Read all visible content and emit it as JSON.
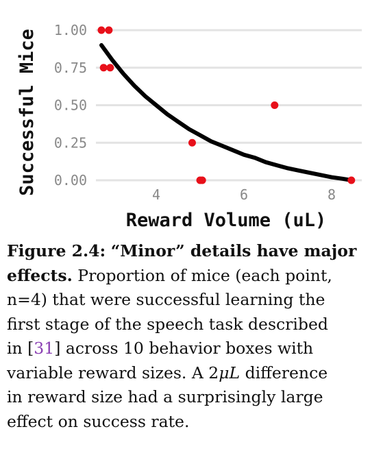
{
  "chart_data": {
    "type": "scatter",
    "xlabel": "Reward Volume (uL)",
    "ylabel": "Successful Mice",
    "x_ticks": [
      4,
      6,
      8
    ],
    "y_ticks": [
      "0.00",
      "0.25",
      "0.50",
      "0.75",
      "1.00"
    ],
    "xlim": [
      2.0,
      8.7
    ],
    "ylim": [
      -0.05,
      1.1
    ],
    "grid": true,
    "point_color": "#e8101a",
    "fit_color": "#000000",
    "points": [
      {
        "x": 2.75,
        "y": 1.0
      },
      {
        "x": 2.92,
        "y": 1.0
      },
      {
        "x": 2.8,
        "y": 0.75
      },
      {
        "x": 2.95,
        "y": 0.75
      },
      {
        "x": 4.82,
        "y": 0.25
      },
      {
        "x": 5.0,
        "y": 0.0
      },
      {
        "x": 5.05,
        "y": 0.0
      },
      {
        "x": 6.7,
        "y": 0.5
      },
      {
        "x": 8.45,
        "y": 0.0
      }
    ],
    "fit_curve": {
      "x": [
        2.75,
        3.0,
        3.25,
        3.5,
        3.75,
        4.0,
        4.25,
        4.5,
        4.75,
        5.0,
        5.25,
        5.5,
        5.75,
        6.0,
        6.25,
        6.5,
        6.75,
        7.0,
        7.25,
        7.5,
        7.75,
        8.0,
        8.25,
        8.45
      ],
      "y": [
        0.9,
        0.8,
        0.71,
        0.63,
        0.56,
        0.5,
        0.44,
        0.39,
        0.34,
        0.3,
        0.26,
        0.23,
        0.2,
        0.17,
        0.15,
        0.12,
        0.1,
        0.08,
        0.065,
        0.05,
        0.035,
        0.02,
        0.01,
        0.0
      ]
    }
  },
  "caption": {
    "label": "Figure 2.4:",
    "title": "“Minor” details have major effects.",
    "line1_label": "Figure 2.4:",
    "line1_title": "“Minor” details have major",
    "line2_title": "effects.",
    "line2_text": "Proportion of mice (each point,",
    "line3": "n=4) that were successful learning the",
    "line4": "first stage of the speech task described",
    "line5_pre": "in [",
    "line5_ref": "31",
    "line5_post": "] across 10 behavior boxes with",
    "line6_pre": "variable reward sizes. A 2",
    "line6_math": "μL",
    "line6_post": " difference",
    "line7": "in reward size had a surprisingly large",
    "line8": "effect on success rate."
  }
}
